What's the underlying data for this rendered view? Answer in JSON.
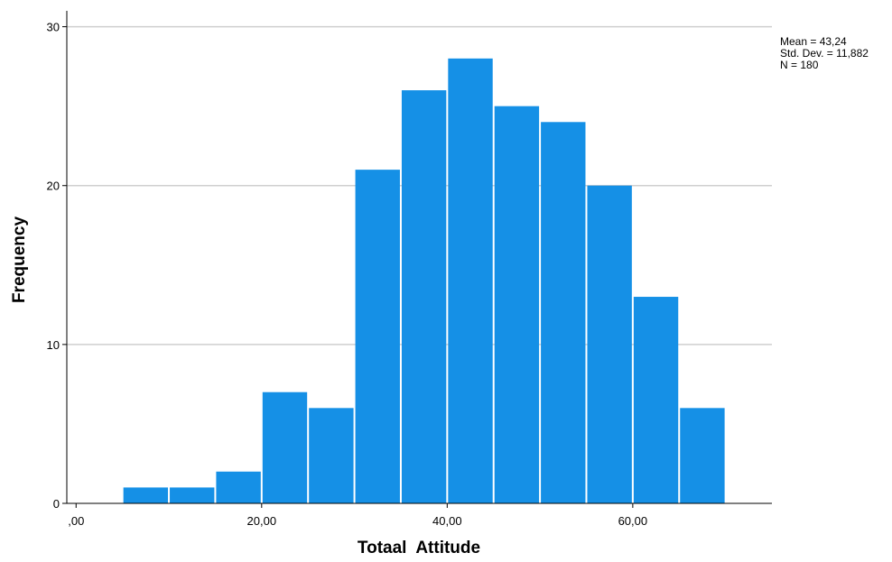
{
  "chart_data": {
    "type": "bar",
    "subtype": "histogram",
    "xlabel": "Totaal  Attitude",
    "ylabel": "Frequency",
    "bin_width": 5,
    "bins": [
      {
        "start": 0,
        "end": 5,
        "count": 0
      },
      {
        "start": 5,
        "end": 10,
        "count": 1
      },
      {
        "start": 10,
        "end": 15,
        "count": 1
      },
      {
        "start": 15,
        "end": 20,
        "count": 2
      },
      {
        "start": 20,
        "end": 25,
        "count": 7
      },
      {
        "start": 25,
        "end": 30,
        "count": 6
      },
      {
        "start": 30,
        "end": 35,
        "count": 21
      },
      {
        "start": 35,
        "end": 40,
        "count": 26
      },
      {
        "start": 40,
        "end": 45,
        "count": 28
      },
      {
        "start": 45,
        "end": 50,
        "count": 25
      },
      {
        "start": 50,
        "end": 55,
        "count": 24
      },
      {
        "start": 55,
        "end": 60,
        "count": 20
      },
      {
        "start": 60,
        "end": 65,
        "count": 13
      },
      {
        "start": 65,
        "end": 70,
        "count": 6
      }
    ],
    "x_ticks": [
      {
        "value": 0,
        "label": ",00"
      },
      {
        "value": 20,
        "label": "20,00"
      },
      {
        "value": 40,
        "label": "40,00"
      },
      {
        "value": 60,
        "label": "60,00"
      }
    ],
    "y_ticks": [
      {
        "value": 0,
        "label": "0"
      },
      {
        "value": 10,
        "label": "10"
      },
      {
        "value": 20,
        "label": "20"
      },
      {
        "value": 30,
        "label": "30"
      }
    ],
    "xlim": [
      -1,
      75
    ],
    "ylim": [
      0,
      31
    ],
    "grid": "horizontal",
    "bar_color": "#1590e6",
    "stats": {
      "mean": "Mean = 43,24",
      "std_dev": "Std. Dev. = 11,882",
      "n": "N = 180"
    }
  }
}
